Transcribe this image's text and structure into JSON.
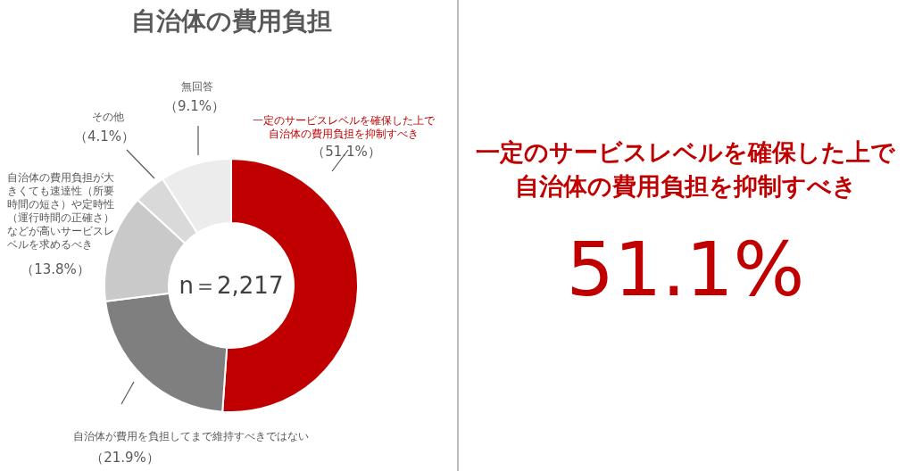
{
  "chart_data": {
    "type": "donut",
    "title": "自治体の費用負担",
    "categories": [
      "一定のサービスレベルを確保した上で自治体の費用負担を抑制すべき",
      "自治体が費用を負担してまで維持すべきではない",
      "自治体の費用負担が大きくても速達性（所要時間の短さ）や定時性（運行時間の正確さ）などが高いサービスレベルを求めるべき",
      "その他",
      "無回答"
    ],
    "values": [
      51.1,
      21.9,
      13.8,
      4.1,
      9.1
    ],
    "colors": [
      "#c00000",
      "#7f7f7f",
      "#c9c9c9",
      "#d9d9d9",
      "#ececec"
    ],
    "value_labels": [
      "（51.1%）",
      "（21.9%）",
      "（13.8%）",
      "（4.1%）",
      "（9.1%）"
    ],
    "annotations": [
      "n＝2,217",
      "一定のサービスレベルを確保した上で自治体の費用負担を抑制すべき",
      "51.1%"
    ]
  }
}
